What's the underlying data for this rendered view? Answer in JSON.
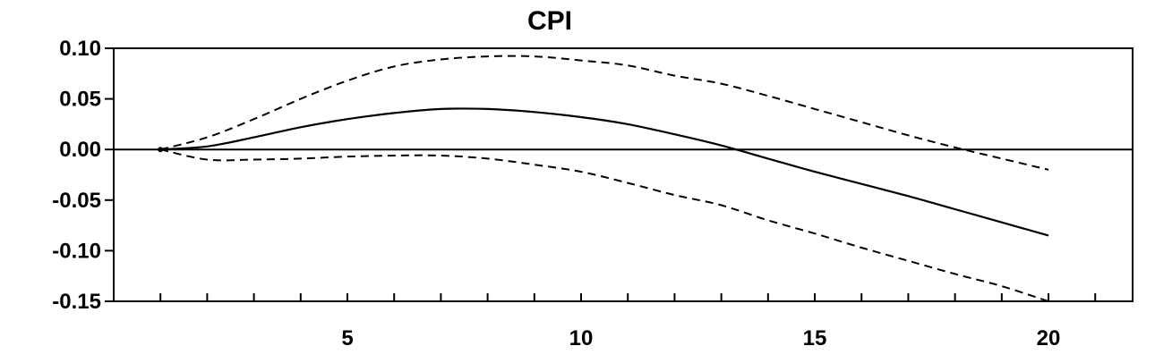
{
  "chart_data": {
    "type": "line",
    "title": "CPI",
    "xlabel": "",
    "ylabel": "",
    "xlim": [
      0,
      21.8
    ],
    "ylim": [
      -0.15,
      0.1
    ],
    "x_ticks": [
      1,
      2,
      3,
      4,
      5,
      6,
      7,
      8,
      9,
      10,
      11,
      12,
      13,
      14,
      15,
      16,
      17,
      18,
      19,
      20,
      21
    ],
    "x_tick_labels": [
      {
        "x": 5,
        "label": "5"
      },
      {
        "x": 10,
        "label": "10"
      },
      {
        "x": 15,
        "label": "15"
      },
      {
        "x": 20,
        "label": "20"
      }
    ],
    "y_tick_labels": [
      {
        "y": 0.1,
        "label": "0.10"
      },
      {
        "y": 0.05,
        "label": "0.05"
      },
      {
        "y": 0.0,
        "label": "0.00"
      },
      {
        "y": -0.05,
        "label": "-0.05"
      },
      {
        "y": -0.1,
        "label": "-0.10"
      },
      {
        "y": -0.15,
        "label": "-0.15"
      }
    ],
    "zero_line": true,
    "grid": false,
    "legend": "none",
    "x": [
      1,
      2,
      3,
      4,
      5,
      6,
      7,
      8,
      9,
      10,
      11,
      12,
      13,
      14,
      15,
      16,
      17,
      18,
      19,
      20
    ],
    "series": [
      {
        "style": "solid",
        "color": "#000000",
        "values": [
          0.0,
          0.003,
          0.012,
          0.022,
          0.03,
          0.036,
          0.04,
          0.04,
          0.037,
          0.032,
          0.025,
          0.015,
          0.004,
          -0.009,
          -0.022,
          -0.034,
          -0.046,
          -0.059,
          -0.072,
          -0.085
        ]
      },
      {
        "style": "dashed",
        "color": "#000000",
        "values": [
          0.0,
          0.012,
          0.03,
          0.05,
          0.068,
          0.082,
          0.089,
          0.092,
          0.092,
          0.088,
          0.083,
          0.073,
          0.065,
          0.053,
          0.04,
          0.027,
          0.014,
          0.002,
          -0.009,
          -0.02
        ]
      },
      {
        "style": "dashed",
        "color": "#000000",
        "values": [
          0.0,
          -0.01,
          -0.01,
          -0.009,
          -0.007,
          -0.006,
          -0.006,
          -0.009,
          -0.015,
          -0.022,
          -0.033,
          -0.045,
          -0.055,
          -0.07,
          -0.083,
          -0.097,
          -0.11,
          -0.123,
          -0.135,
          -0.15
        ]
      }
    ]
  }
}
